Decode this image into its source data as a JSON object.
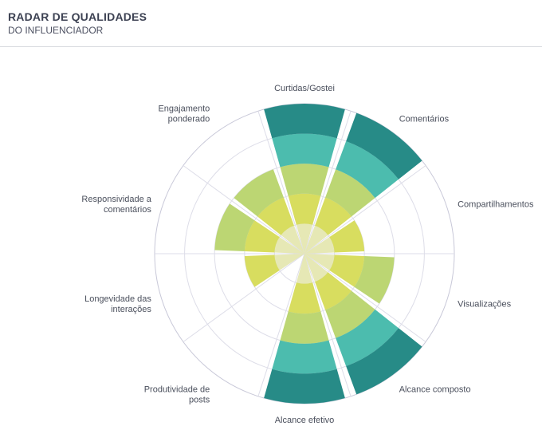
{
  "header": {
    "title": "RADAR DE QUALIDADES",
    "subtitle": "DO INFLUENCIADOR"
  },
  "colors": {
    "level1": "#e6e8b5",
    "level2": "#d8dd5f",
    "level3": "#bcd673",
    "level4": "#4cbcae",
    "level5": "#278b87",
    "grid": "#dddde8",
    "outer_ring": "#c8c8d8"
  },
  "chart_data": {
    "type": "polar-area",
    "title": "RADAR DE QUALIDADES",
    "subtitle": "DO INFLUENCIADOR",
    "scale_max": 5,
    "start_angle_deg": 0,
    "direction": "clockwise",
    "categories": [
      [
        "Curtidas/Gostei"
      ],
      [
        "Comentários"
      ],
      [
        "Compartilhamentos"
      ],
      [
        "Visualizações"
      ],
      [
        "Alcance composto"
      ],
      [
        "Alcance efetivo"
      ],
      [
        "Produtividade de",
        "posts"
      ],
      [
        "Longevidade das",
        "interações"
      ],
      [
        "Responsividade a",
        "comentários"
      ],
      [
        "Engajamento",
        "ponderado"
      ]
    ],
    "values": [
      5,
      5,
      2,
      3,
      5,
      5,
      0,
      2,
      3,
      3
    ]
  }
}
